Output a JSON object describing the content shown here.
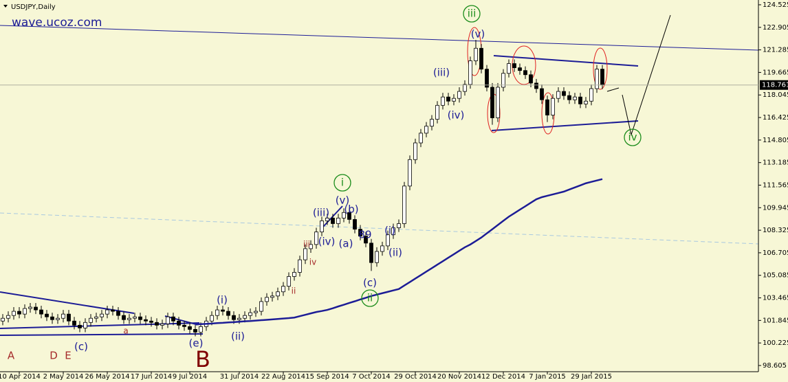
{
  "chart_data": {
    "type": "candlestick",
    "title": "USDJPY,Daily",
    "watermark": "wave.ucoz.com",
    "categories": [
      null,
      null,
      null,
      "10 Apr 2014",
      null,
      null,
      null,
      null,
      null,
      null,
      null,
      "2 May 2014",
      null,
      null,
      null,
      null,
      null,
      null,
      null,
      "26 May 2014",
      null,
      null,
      null,
      null,
      null,
      null,
      null,
      "17 Jun 2014",
      null,
      null,
      null,
      null,
      null,
      null,
      "9 Jul 2014",
      null,
      null,
      null,
      null,
      null,
      null,
      null,
      null,
      "31 Jul 2014",
      null,
      null,
      null,
      null,
      null,
      null,
      null,
      "22 Aug 2014",
      null,
      null,
      null,
      null,
      null,
      null,
      null,
      "15 Sep 2014",
      null,
      null,
      null,
      null,
      null,
      null,
      null,
      "7 Oct 2014",
      null,
      null,
      null,
      null,
      null,
      null,
      null,
      "29 Oct 2014",
      null,
      null,
      null,
      null,
      null,
      null,
      null,
      "20 Nov 2014",
      null,
      null,
      null,
      null,
      null,
      null,
      null,
      "12 Dec 2014",
      null,
      null,
      null,
      null,
      null,
      null,
      null,
      "7 Jan 2015",
      null,
      null,
      null,
      null,
      null,
      null,
      null,
      "29 Jan 2015",
      null,
      null
    ],
    "open": [
      101.8,
      102.0,
      102.2,
      102.5,
      102.3,
      102.7,
      102.8,
      102.6,
      102.3,
      102.1,
      101.9,
      102.0,
      102.3,
      101.8,
      101.5,
      101.3,
      101.7,
      102.0,
      102.1,
      102.3,
      102.6,
      102.5,
      102.2,
      101.9,
      102.0,
      102.1,
      101.9,
      101.8,
      101.7,
      101.5,
      101.6,
      102.1,
      101.8,
      101.5,
      101.4,
      101.2,
      101.0,
      101.4,
      101.8,
      102.2,
      102.6,
      102.5,
      102.2,
      101.9,
      102.0,
      102.2,
      102.4,
      102.5,
      103.2,
      103.5,
      103.6,
      103.9,
      104.3,
      105.0,
      105.3,
      106.2,
      107.0,
      107.3,
      108.2,
      109.0,
      109.2,
      108.8,
      109.2,
      109.6,
      109.1,
      108.4,
      107.9,
      107.4,
      106.0,
      106.8,
      107.2,
      108.0,
      108.5,
      108.8,
      111.5,
      113.4,
      114.6,
      115.3,
      115.8,
      116.3,
      117.3,
      117.9,
      117.6,
      117.8,
      118.3,
      118.8,
      120.5,
      121.4,
      119.9,
      118.6,
      116.4,
      118.6,
      119.6,
      120.3,
      120.0,
      119.8,
      119.5,
      118.9,
      118.5,
      117.7,
      116.6,
      117.8,
      118.3,
      118.0,
      117.7,
      117.9,
      117.4,
      117.6,
      118.5,
      119.9
    ],
    "high": [
      102.3,
      102.5,
      102.8,
      102.8,
      103.0,
      103.1,
      103.1,
      102.9,
      102.6,
      102.4,
      102.3,
      102.6,
      102.6,
      102.1,
      101.8,
      102.0,
      102.3,
      102.4,
      102.6,
      102.9,
      102.9,
      102.8,
      102.5,
      102.3,
      102.4,
      102.4,
      102.2,
      102.1,
      102.0,
      101.9,
      102.4,
      102.4,
      102.1,
      101.8,
      101.7,
      101.5,
      101.7,
      102.1,
      102.5,
      102.9,
      102.9,
      102.8,
      102.5,
      102.3,
      102.5,
      102.7,
      102.8,
      103.5,
      103.8,
      103.9,
      104.2,
      104.6,
      105.3,
      105.6,
      106.5,
      107.3,
      107.6,
      108.5,
      109.3,
      109.5,
      109.5,
      109.5,
      109.9,
      109.9,
      109.4,
      108.7,
      108.2,
      107.7,
      107.1,
      107.5,
      108.3,
      108.8,
      109.1,
      111.8,
      113.7,
      114.9,
      115.6,
      116.1,
      116.6,
      117.6,
      118.2,
      118.2,
      118.1,
      118.6,
      119.1,
      120.8,
      122.0,
      121.7,
      120.2,
      118.9,
      118.9,
      119.9,
      120.6,
      120.6,
      120.3,
      120.1,
      119.8,
      119.2,
      118.8,
      118.0,
      118.1,
      118.6,
      118.6,
      118.3,
      118.2,
      118.2,
      117.9,
      118.8,
      120.2,
      120.2
    ],
    "low": [
      101.5,
      101.7,
      101.9,
      102.0,
      102.0,
      102.4,
      102.3,
      102.0,
      101.8,
      101.6,
      101.6,
      101.7,
      101.5,
      101.2,
      101.0,
      101.0,
      101.4,
      101.7,
      101.8,
      102.0,
      102.2,
      101.9,
      101.6,
      101.6,
      101.7,
      101.6,
      101.5,
      101.4,
      101.2,
      101.2,
      101.3,
      101.5,
      101.2,
      101.1,
      100.9,
      100.7,
      100.7,
      101.1,
      101.5,
      101.9,
      102.2,
      101.9,
      101.6,
      101.6,
      101.7,
      101.9,
      102.1,
      102.2,
      102.9,
      103.2,
      103.3,
      103.6,
      104.0,
      104.7,
      105.0,
      105.9,
      106.7,
      107.0,
      107.9,
      108.7,
      108.5,
      108.5,
      108.9,
      108.8,
      108.1,
      107.6,
      107.1,
      105.4,
      105.7,
      106.5,
      106.9,
      107.7,
      108.2,
      108.5,
      111.2,
      113.1,
      114.3,
      115.0,
      115.5,
      116.0,
      117.0,
      117.3,
      117.3,
      117.5,
      118.0,
      118.5,
      120.2,
      119.6,
      118.3,
      115.9,
      116.1,
      118.3,
      119.3,
      119.7,
      119.5,
      119.2,
      118.6,
      118.2,
      117.4,
      116.1,
      116.3,
      117.5,
      117.7,
      117.4,
      117.4,
      117.1,
      117.1,
      117.3,
      118.2,
      118.46
    ],
    "close": [
      102.0,
      102.2,
      102.5,
      102.3,
      102.7,
      102.8,
      102.6,
      102.3,
      102.1,
      101.9,
      102.0,
      102.3,
      101.8,
      101.5,
      101.3,
      101.7,
      102.0,
      102.1,
      102.3,
      102.6,
      102.5,
      102.2,
      101.9,
      102.0,
      102.1,
      101.9,
      101.8,
      101.7,
      101.5,
      101.6,
      102.1,
      101.8,
      101.5,
      101.4,
      101.2,
      101.0,
      101.4,
      101.8,
      102.2,
      102.6,
      102.5,
      102.2,
      101.9,
      102.0,
      102.2,
      102.4,
      102.5,
      103.2,
      103.5,
      103.6,
      103.9,
      104.3,
      105.0,
      105.3,
      106.2,
      107.0,
      107.3,
      108.2,
      109.0,
      109.2,
      108.8,
      109.2,
      109.6,
      109.1,
      108.4,
      107.9,
      107.4,
      106.0,
      106.8,
      107.2,
      108.0,
      108.5,
      108.8,
      111.5,
      113.4,
      114.6,
      115.3,
      115.8,
      116.3,
      117.3,
      117.9,
      117.6,
      117.8,
      118.3,
      118.8,
      120.5,
      121.4,
      119.9,
      118.6,
      116.4,
      118.6,
      119.6,
      120.3,
      120.0,
      119.8,
      119.5,
      118.9,
      118.5,
      117.7,
      116.6,
      117.8,
      118.3,
      118.0,
      117.7,
      117.9,
      117.4,
      117.6,
      118.5,
      119.9,
      118.76
    ],
    "moving_average": {
      "color": "#1c1c96",
      "values": [
        null,
        null,
        null,
        null,
        null,
        null,
        null,
        null,
        null,
        null,
        null,
        null,
        null,
        null,
        null,
        null,
        null,
        null,
        null,
        null,
        null,
        null,
        null,
        null,
        null,
        null,
        null,
        null,
        null,
        null,
        null,
        null,
        null,
        null,
        null,
        101.55,
        101.58,
        101.6,
        101.62,
        101.65,
        101.67,
        101.7,
        101.72,
        101.75,
        101.78,
        101.8,
        101.83,
        101.86,
        101.89,
        101.92,
        101.95,
        101.98,
        102.01,
        102.05,
        102.15,
        102.25,
        102.35,
        102.45,
        102.52,
        102.6,
        102.72,
        102.85,
        102.97,
        103.1,
        103.22,
        103.35,
        103.47,
        103.6,
        103.7,
        103.8,
        103.9,
        104.0,
        104.1,
        104.35,
        104.6,
        104.85,
        105.1,
        105.35,
        105.6,
        105.85,
        106.1,
        106.35,
        106.6,
        106.85,
        107.1,
        107.3,
        107.55,
        107.8,
        108.1,
        108.4,
        108.7,
        109.0,
        109.3,
        109.55,
        109.8,
        110.05,
        110.3,
        110.55,
        110.7,
        110.8,
        110.9,
        111.0,
        111.1,
        111.25,
        111.4,
        111.55,
        111.7,
        111.8,
        111.9,
        112.0
      ]
    },
    "current_price": 118.761,
    "ylim": [
      98.16,
      124.77
    ],
    "yticks": [
      124.525,
      122.905,
      121.285,
      119.665,
      118.045,
      116.425,
      114.805,
      113.185,
      111.565,
      109.945,
      108.325,
      106.705,
      105.085,
      103.465,
      101.845,
      100.225,
      98.605
    ],
    "annotations": [
      {
        "text": "(v)",
        "color": "#1c1c96"
      },
      {
        "text": "iii",
        "color": "#1a8c1a"
      },
      {
        "text": "(iii)",
        "color": "#1c1c96"
      },
      {
        "text": "(iv)",
        "color": "#1c1c96"
      },
      {
        "text": "iv",
        "color": "#1a8c1a"
      },
      {
        "text": "i",
        "color": "#1a8c1a"
      },
      {
        "text": "(v)",
        "color": "#1c1c96"
      },
      {
        "text": "(iii)",
        "color": "#1c1c96"
      },
      {
        "text": "(b)",
        "color": "#1c1c96"
      },
      {
        "text": "(iv)",
        "color": "#1c1c96"
      },
      {
        "text": "(a)",
        "color": "#1c1c96"
      },
      {
        "text": "89",
        "color": "#1c1c96"
      },
      {
        "text": "(i)",
        "color": "#1c1c96"
      },
      {
        "text": "(ii)",
        "color": "#1c1c96"
      },
      {
        "text": "(c)",
        "color": "#1c1c96"
      },
      {
        "text": "ii",
        "color": "#1a8c1a"
      },
      {
        "text": "iii",
        "color": "#a52a2a"
      },
      {
        "text": "iv",
        "color": "#a52a2a"
      },
      {
        "text": "ii",
        "color": "#a52a2a"
      },
      {
        "text": "(i)",
        "color": "#1c1c96"
      },
      {
        "text": "(ii)",
        "color": "#1c1c96"
      },
      {
        "text": "(c)",
        "color": "#1c1c96"
      },
      {
        "text": "(e)",
        "color": "#1c1c96"
      },
      {
        "text": "a",
        "color": "#a52a2a"
      },
      {
        "text": "A",
        "color": "#a52a2a"
      },
      {
        "text": "D",
        "color": "#a52a2a"
      },
      {
        "text": "E",
        "color": "#a52a2a"
      },
      {
        "text": "B",
        "color": "#800000"
      }
    ]
  }
}
